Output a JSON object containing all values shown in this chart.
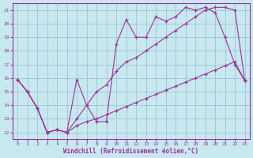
{
  "xlabel": "Windchill (Refroidissement éolien,°C)",
  "background_color": "#c8e8f0",
  "grid_color": "#99bbcc",
  "line_color": "#993399",
  "xlim": [
    -0.5,
    23.5
  ],
  "ylim": [
    11.5,
    21.5
  ],
  "xticks": [
    0,
    1,
    2,
    3,
    4,
    5,
    6,
    7,
    8,
    9,
    10,
    11,
    12,
    13,
    14,
    15,
    16,
    17,
    18,
    19,
    20,
    21,
    22,
    23
  ],
  "yticks": [
    12,
    13,
    14,
    15,
    16,
    17,
    18,
    19,
    20,
    21
  ],
  "line1_x": [
    0,
    1,
    2,
    3,
    4,
    5,
    6,
    7,
    8,
    9,
    10,
    11,
    12,
    13,
    14,
    15,
    16,
    17,
    18,
    19,
    20,
    21,
    22,
    23
  ],
  "line1_y": [
    15.9,
    15.0,
    13.8,
    12.0,
    12.2,
    12.0,
    15.9,
    14.0,
    12.8,
    12.8,
    18.5,
    20.3,
    19.0,
    19.0,
    20.5,
    20.2,
    20.5,
    21.2,
    21.0,
    21.2,
    20.8,
    19.0,
    17.0,
    15.8
  ],
  "line2_x": [
    0,
    1,
    2,
    3,
    4,
    5,
    6,
    7,
    8,
    9,
    10,
    11,
    12,
    13,
    14,
    15,
    16,
    17,
    18,
    19,
    20,
    21,
    22,
    23
  ],
  "line2_y": [
    15.9,
    15.0,
    13.8,
    12.0,
    12.2,
    12.0,
    13.0,
    14.0,
    15.0,
    15.5,
    16.5,
    17.2,
    17.5,
    18.0,
    18.5,
    19.0,
    19.5,
    20.0,
    20.5,
    21.0,
    21.2,
    21.2,
    21.0,
    15.8
  ],
  "line3_x": [
    0,
    1,
    2,
    3,
    4,
    5,
    6,
    7,
    8,
    9,
    10,
    11,
    12,
    13,
    14,
    15,
    16,
    17,
    18,
    19,
    20,
    21,
    22,
    23
  ],
  "line3_y": [
    15.9,
    15.0,
    13.8,
    12.0,
    12.2,
    12.0,
    12.5,
    12.8,
    13.0,
    13.3,
    13.6,
    13.9,
    14.2,
    14.5,
    14.8,
    15.1,
    15.4,
    15.7,
    16.0,
    16.3,
    16.6,
    16.9,
    17.2,
    15.8
  ]
}
